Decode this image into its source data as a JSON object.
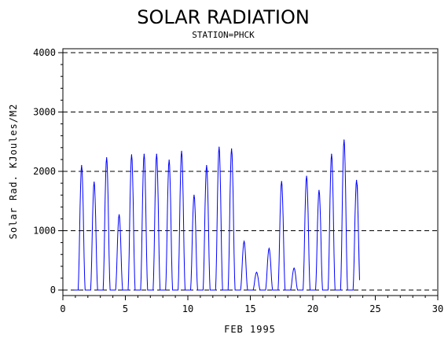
{
  "chart_data": {
    "type": "line",
    "title": "SOLAR RADIATION",
    "subtitle": "STATION=PHCK",
    "xlabel": "FEB 1995",
    "ylabel": "Solar Rad. KJoules/M2",
    "xlim": [
      0,
      30
    ],
    "ylim": [
      0,
      4000
    ],
    "xticks": [
      0,
      5,
      10,
      15,
      20,
      25,
      30
    ],
    "yticks": [
      0,
      1000,
      2000,
      3000,
      4000
    ],
    "grid": "horizontal-dashed",
    "line_color": "#0000ff",
    "series": [
      {
        "peaks": [
          {
            "x": 1.5,
            "y": 2100
          },
          {
            "x": 2.5,
            "y": 1820
          },
          {
            "x": 3.5,
            "y": 2230
          },
          {
            "x": 4.5,
            "y": 1270
          },
          {
            "x": 5.5,
            "y": 2280
          },
          {
            "x": 6.5,
            "y": 2290
          },
          {
            "x": 7.5,
            "y": 2290
          },
          {
            "x": 8.5,
            "y": 2190
          },
          {
            "x": 9.5,
            "y": 2340
          },
          {
            "x": 10.5,
            "y": 1600
          },
          {
            "x": 11.5,
            "y": 2100
          },
          {
            "x": 12.5,
            "y": 2410
          },
          {
            "x": 13.5,
            "y": 2380
          },
          {
            "x": 14.5,
            "y": 820
          },
          {
            "x": 15.5,
            "y": 300
          },
          {
            "x": 16.5,
            "y": 700
          },
          {
            "x": 17.5,
            "y": 1830
          },
          {
            "x": 18.5,
            "y": 370
          },
          {
            "x": 19.5,
            "y": 1920
          },
          {
            "x": 20.5,
            "y": 1680
          },
          {
            "x": 21.5,
            "y": 2290
          },
          {
            "x": 22.5,
            "y": 2530
          },
          {
            "x": 23.5,
            "y": 1850
          }
        ]
      }
    ]
  }
}
